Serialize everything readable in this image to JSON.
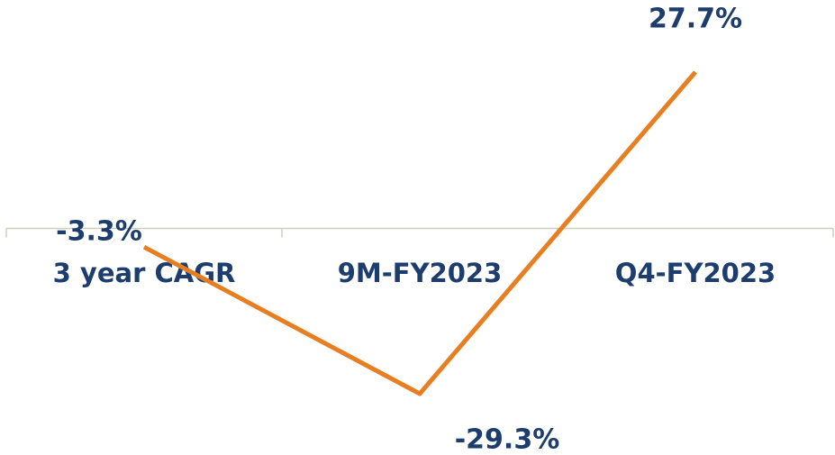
{
  "chart_data": {
    "type": "line",
    "categories": [
      "3 year CAGR",
      "9M-FY2023",
      "Q4-FY2023"
    ],
    "series": [
      {
        "name": null,
        "color": "#e87e22",
        "values": [
          -3.3,
          -29.3,
          27.7
        ],
        "value_labels": [
          "-3.3%",
          "-29.3%",
          "27.7%"
        ]
      }
    ]
  }
}
